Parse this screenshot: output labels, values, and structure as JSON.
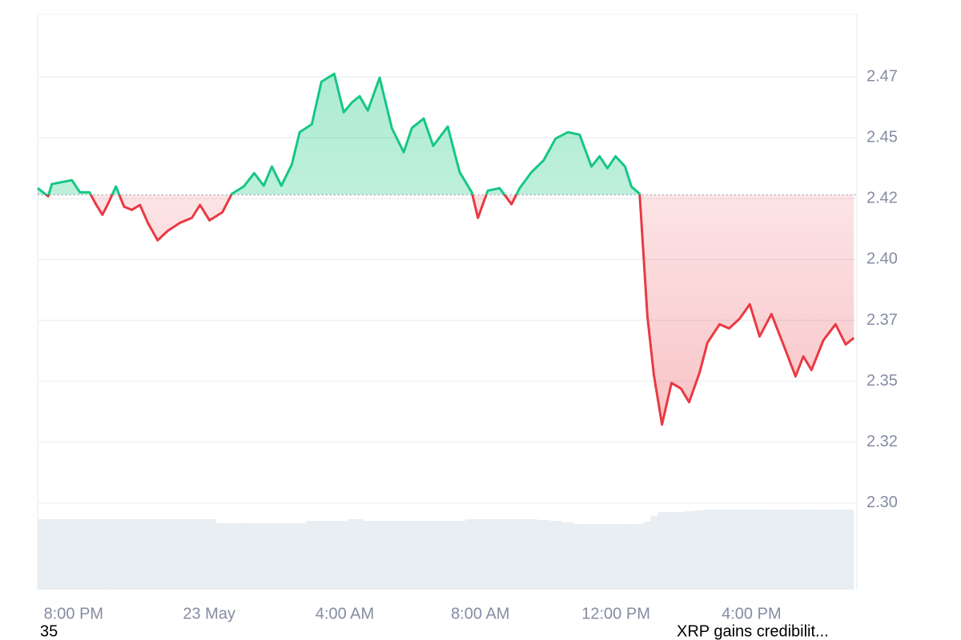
{
  "chart_data": {
    "type": "line",
    "x": [
      18.94,
      19.25,
      19.36,
      19.95,
      20.19,
      20.47,
      20.66,
      20.85,
      21.01,
      21.25,
      21.49,
      21.72,
      21.96,
      22.19,
      22.48,
      22.78,
      23.14,
      23.49,
      23.73,
      24.01,
      24.39,
      24.67,
      25.02,
      25.33,
      25.61,
      25.85,
      26.13,
      26.44,
      26.67,
      27.03,
      27.31,
      27.69,
      27.97,
      28.21,
      28.44,
      28.68,
      29.03,
      29.39,
      29.74,
      29.98,
      30.33,
      30.61,
      31.04,
      31.39,
      31.75,
      31.93,
      32.22,
      32.57,
      32.92,
      33.16,
      33.51,
      33.87,
      34.22,
      34.58,
      34.93,
      35.28,
      35.52,
      35.75,
      35.99,
      36.27,
      36.46,
      36.7,
      36.93,
      37.12,
      37.36,
      37.64,
      37.92,
      38.16,
      38.47,
      38.7,
      39.06,
      39.34,
      39.65,
      39.95,
      40.24,
      40.59,
      40.94,
      41.3,
      41.53,
      41.77,
      42.12,
      42.48,
      42.78,
      43.02
    ],
    "values": [
      2.4293,
      2.426,
      2.431,
      2.4326,
      2.4276,
      2.4276,
      2.4227,
      2.4184,
      2.4227,
      2.43,
      2.4217,
      2.4204,
      2.4224,
      2.4151,
      2.4079,
      2.4118,
      2.4151,
      2.4171,
      2.4224,
      2.4161,
      2.4194,
      2.427,
      2.43,
      2.4355,
      2.4303,
      2.4382,
      2.4303,
      2.4391,
      2.4523,
      2.4556,
      2.473,
      2.4763,
      2.4605,
      2.4645,
      2.4671,
      2.4612,
      2.4747,
      2.454,
      2.4441,
      2.454,
      2.4579,
      2.4467,
      2.4546,
      2.4359,
      2.4276,
      2.4171,
      2.4283,
      2.4293,
      2.4227,
      2.4293,
      2.4359,
      2.4408,
      2.4497,
      2.4523,
      2.4513,
      2.4382,
      2.4424,
      2.4375,
      2.4424,
      2.4382,
      2.4299,
      2.427,
      2.3766,
      2.3526,
      2.3322,
      2.3493,
      2.347,
      2.3414,
      2.3536,
      2.3658,
      2.3734,
      2.3717,
      2.3757,
      2.3816,
      2.3684,
      2.3776,
      2.3651,
      2.352,
      2.3602,
      2.3546,
      2.3668,
      2.3734,
      2.3651,
      2.3678
    ],
    "volume": [
      88,
      88,
      88,
      88,
      88,
      88,
      88,
      88,
      88,
      88,
      88,
      88,
      88,
      88,
      88,
      88,
      88,
      88,
      88,
      88,
      83,
      83,
      83,
      83,
      83,
      83,
      83,
      83,
      83,
      86,
      86,
      86,
      86,
      88,
      88,
      86,
      86,
      86,
      86,
      86,
      86,
      86,
      86,
      86,
      88,
      88,
      88,
      88,
      88,
      88,
      88,
      87,
      86,
      84,
      82,
      82,
      82,
      82,
      82,
      82,
      82,
      82,
      85,
      92,
      97,
      97,
      97,
      98,
      99,
      100,
      100,
      100,
      100,
      100,
      100,
      100,
      100,
      100,
      100,
      100,
      100,
      100,
      100,
      100
    ],
    "baseline": 2.4266,
    "up_color": "#16c784",
    "down_color": "#ea3943",
    "xlim": [
      18.94,
      43.11
    ],
    "xticks": [
      {
        "value": 20,
        "label": "8:00 PM"
      },
      {
        "value": 24,
        "label": "23 May"
      },
      {
        "value": 28,
        "label": "4:00 AM"
      },
      {
        "value": 32,
        "label": "8:00 AM"
      },
      {
        "value": 36,
        "label": "12:00 PM"
      },
      {
        "value": 40,
        "label": "4:00 PM"
      }
    ],
    "ylim": [
      2.2644,
      2.5007
    ],
    "yticks": [
      {
        "value": 2.3,
        "label": "2.30"
      },
      {
        "value": 2.325,
        "label": "2.32"
      },
      {
        "value": 2.35,
        "label": "2.35"
      },
      {
        "value": 2.375,
        "label": "2.37"
      },
      {
        "value": 2.4,
        "label": "2.40"
      },
      {
        "value": 2.425,
        "label": "2.42"
      },
      {
        "value": 2.45,
        "label": "2.45"
      },
      {
        "value": 2.475,
        "label": "2.47"
      }
    ],
    "y2lim": [
      0,
      100
    ],
    "grid": true
  },
  "footer": {
    "left": "35",
    "right": "XRP gains credibilit..."
  }
}
